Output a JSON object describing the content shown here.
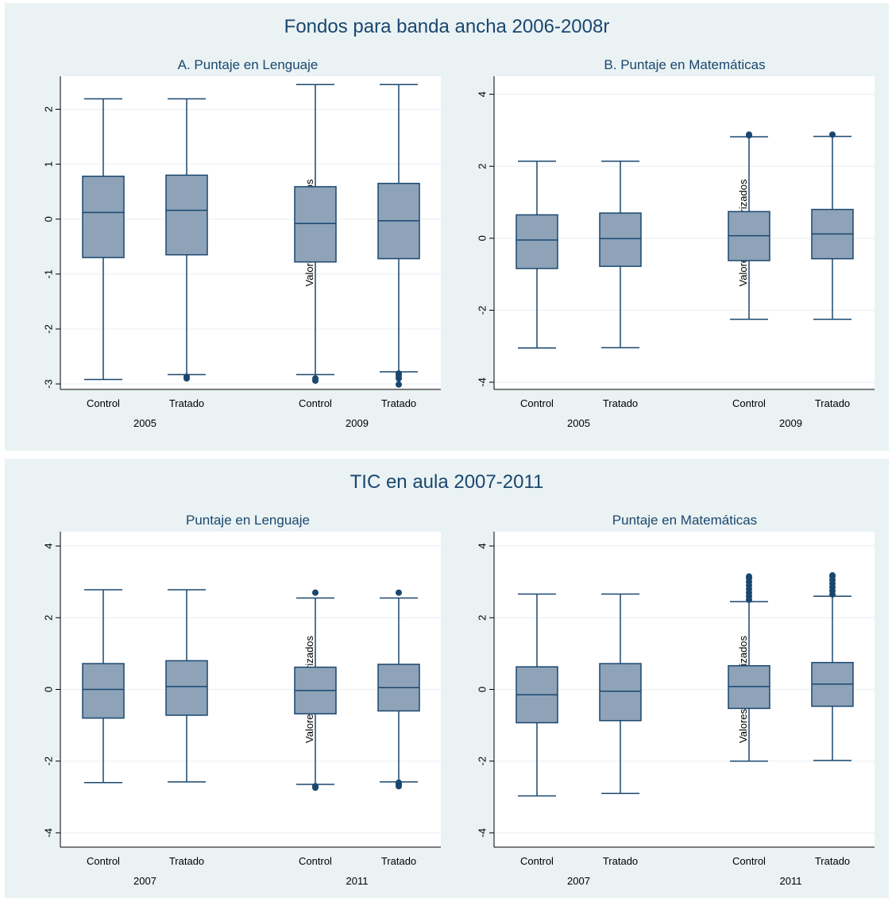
{
  "figure": {
    "groups": [
      {
        "id": "g1",
        "title": "Fondos para banda ancha 2006-2008r"
      },
      {
        "id": "g2",
        "title": "TIC en aula 2007-2011"
      }
    ]
  },
  "colors": {
    "box_fill": "#8ea3b8",
    "line": "#1a476f",
    "panel_bg": "#eaf2f3",
    "grid": "#e8eef0"
  },
  "chart_data": [
    {
      "type": "box",
      "title": "A. Puntaje en Lenguaje",
      "ylabel": "Valores estandarizados",
      "ylim": [
        -3.1,
        2.6
      ],
      "yticks": [
        2,
        1,
        0,
        -1,
        -2,
        -3
      ],
      "ytick_labels": [
        "2",
        "1",
        "0",
        "-1",
        "-2",
        "-3"
      ],
      "group_labels": [
        "2005",
        "2009"
      ],
      "boxes": [
        {
          "year": "2005",
          "label": "Control",
          "whisker_low": -2.92,
          "q1": -0.7,
          "median": 0.12,
          "q3": 0.78,
          "whisker_high": 2.19,
          "outliers": []
        },
        {
          "year": "2005",
          "label": "Tratado",
          "whisker_low": -2.83,
          "q1": -0.65,
          "median": 0.16,
          "q3": 0.8,
          "whisker_high": 2.19,
          "outliers": [
            -2.87,
            -2.9
          ]
        },
        {
          "year": "2009",
          "label": "Control",
          "whisker_low": -2.83,
          "q1": -0.78,
          "median": -0.08,
          "q3": 0.59,
          "whisker_high": 2.45,
          "outliers": [
            -2.9,
            -2.94
          ]
        },
        {
          "year": "2009",
          "label": "Tratado",
          "whisker_low": -2.78,
          "q1": -0.72,
          "median": -0.03,
          "q3": 0.65,
          "whisker_high": 2.45,
          "outliers": [
            -2.81,
            -2.85,
            -2.9,
            -3.01
          ]
        }
      ]
    },
    {
      "type": "box",
      "title": "B. Puntaje en Matemáticas",
      "ylabel": "Valores estandarizados",
      "ylim": [
        -4.2,
        4.5
      ],
      "yticks": [
        4,
        2,
        0,
        -2,
        -4
      ],
      "ytick_labels": [
        "4",
        "2",
        "0",
        "-2",
        "-4"
      ],
      "group_labels": [
        "2005",
        "2009"
      ],
      "boxes": [
        {
          "year": "2005",
          "label": "Control",
          "whisker_low": -3.05,
          "q1": -0.84,
          "median": -0.05,
          "q3": 0.65,
          "whisker_high": 2.14,
          "outliers": []
        },
        {
          "year": "2005",
          "label": "Tratado",
          "whisker_low": -3.04,
          "q1": -0.78,
          "median": -0.01,
          "q3": 0.7,
          "whisker_high": 2.14,
          "outliers": []
        },
        {
          "year": "2009",
          "label": "Control",
          "whisker_low": -2.25,
          "q1": -0.62,
          "median": 0.07,
          "q3": 0.74,
          "whisker_high": 2.82,
          "outliers": [
            2.86,
            2.88
          ]
        },
        {
          "year": "2009",
          "label": "Tratado",
          "whisker_low": -2.25,
          "q1": -0.57,
          "median": 0.12,
          "q3": 0.8,
          "whisker_high": 2.83,
          "outliers": [
            2.88
          ]
        }
      ]
    },
    {
      "type": "box",
      "title": "Puntaje en Lenguaje",
      "ylabel": "Valores estandarizados",
      "ylim": [
        -4.4,
        4.4
      ],
      "yticks": [
        4,
        2,
        0,
        -2,
        -4
      ],
      "ytick_labels": [
        "4",
        "2",
        "0",
        "-2",
        "-4"
      ],
      "group_labels": [
        "2007",
        "2011"
      ],
      "boxes": [
        {
          "year": "2007",
          "label": "Control",
          "whisker_low": -2.6,
          "q1": -0.8,
          "median": 0.0,
          "q3": 0.72,
          "whisker_high": 2.78,
          "outliers": []
        },
        {
          "year": "2007",
          "label": "Tratado",
          "whisker_low": -2.58,
          "q1": -0.72,
          "median": 0.08,
          "q3": 0.8,
          "whisker_high": 2.78,
          "outliers": []
        },
        {
          "year": "2011",
          "label": "Control",
          "whisker_low": -2.65,
          "q1": -0.68,
          "median": -0.03,
          "q3": 0.62,
          "whisker_high": 2.55,
          "outliers": [
            2.7,
            -2.7,
            -2.74
          ]
        },
        {
          "year": "2011",
          "label": "Tratado",
          "whisker_low": -2.58,
          "q1": -0.6,
          "median": 0.05,
          "q3": 0.7,
          "whisker_high": 2.55,
          "outliers": [
            2.7,
            -2.6,
            -2.64,
            -2.7
          ]
        }
      ]
    },
    {
      "type": "box",
      "title": "Puntaje en Matemáticas",
      "ylabel": "Valores estandarizados",
      "ylim": [
        -4.4,
        4.4
      ],
      "yticks": [
        4,
        2,
        0,
        -2,
        -4
      ],
      "ytick_labels": [
        "4",
        "2",
        "0",
        "-2",
        "-4"
      ],
      "group_labels": [
        "2007",
        "2011"
      ],
      "boxes": [
        {
          "year": "2007",
          "label": "Control",
          "whisker_low": -2.97,
          "q1": -0.93,
          "median": -0.15,
          "q3": 0.63,
          "whisker_high": 2.66,
          "outliers": []
        },
        {
          "year": "2007",
          "label": "Tratado",
          "whisker_low": -2.9,
          "q1": -0.87,
          "median": -0.05,
          "q3": 0.72,
          "whisker_high": 2.66,
          "outliers": []
        },
        {
          "year": "2011",
          "label": "Control",
          "whisker_low": -2.0,
          "q1": -0.53,
          "median": 0.08,
          "q3": 0.66,
          "whisker_high": 2.45,
          "outliers": [
            2.5,
            2.6,
            2.7,
            2.8,
            2.9,
            3.0,
            3.1,
            3.15
          ]
        },
        {
          "year": "2011",
          "label": "Tratado",
          "whisker_low": -1.98,
          "q1": -0.47,
          "median": 0.15,
          "q3": 0.75,
          "whisker_high": 2.6,
          "outliers": [
            2.65,
            2.75,
            2.85,
            2.95,
            3.05,
            3.15,
            3.18
          ]
        }
      ]
    }
  ]
}
